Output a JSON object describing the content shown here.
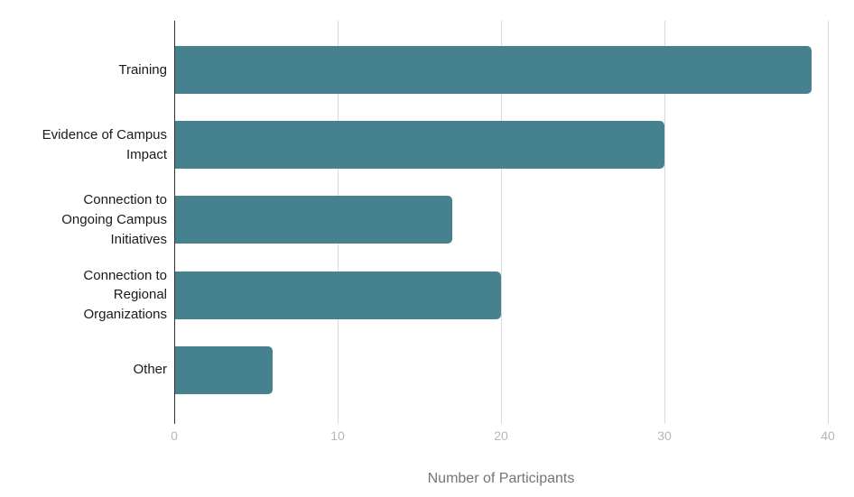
{
  "chart_data": {
    "type": "bar",
    "orientation": "horizontal",
    "title": "",
    "xlabel": "Number of Participants",
    "ylabel": "",
    "xlim": [
      0,
      40
    ],
    "x_ticks": [
      0,
      10,
      20,
      30,
      40
    ],
    "grid": true,
    "legend": "none",
    "bar_color": "#45818e",
    "categories": [
      "Training",
      "Evidence of Campus Impact",
      "Connection to Ongoing Campus Initiatives",
      "Connection to Regional Organizations",
      "Other"
    ],
    "values": [
      39,
      30,
      17,
      20,
      6
    ],
    "category_display": [
      "Training",
      "Evidence of Campus\nImpact",
      "Connection to\nOngoing Campus\nInitiatives",
      "Connection to\nRegional\nOrganizations",
      "Other"
    ]
  },
  "colors": {
    "bar": "#45818e",
    "gridline": "#d9d9d9",
    "zero_axis": "#333333",
    "tick_label": "#b7b7b7",
    "axis_title": "#757575",
    "category_label": "#1a1a1a",
    "background": "#ffffff"
  }
}
